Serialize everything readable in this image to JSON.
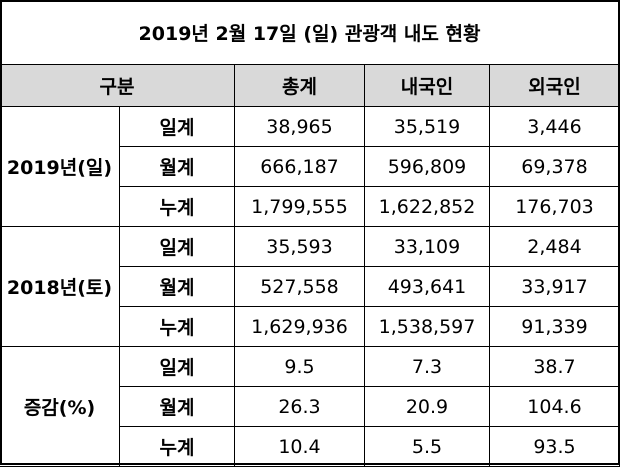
{
  "title": "2019년 2월 17일 (일) 관광객 내도 현황",
  "header": [
    "구분",
    "총계",
    "내국인",
    "외국인"
  ],
  "groups": [
    {
      "label": "2019년(일)",
      "rows": [
        {
          "label": "일계",
          "values": [
            "38,965",
            "35,519",
            "3,446"
          ]
        },
        {
          "label": "월계",
          "values": [
            "666,187",
            "596,809",
            "69,378"
          ]
        },
        {
          "label": "누계",
          "values": [
            "1,799,555",
            "1,622,852",
            "176,703"
          ]
        }
      ]
    },
    {
      "label": "2018년(토)",
      "rows": [
        {
          "label": "일계",
          "values": [
            "35,593",
            "33,109",
            "2,484"
          ]
        },
        {
          "label": "월계",
          "values": [
            "527,558",
            "493,641",
            "33,917"
          ]
        },
        {
          "label": "누계",
          "values": [
            "1,629,936",
            "1,538,597",
            "91,339"
          ]
        }
      ]
    },
    {
      "label": "증감(%)",
      "rows": [
        {
          "label": "일계",
          "values": [
            "9.5",
            "7.3",
            "38.7"
          ]
        },
        {
          "label": "월계",
          "values": [
            "26.3",
            "20.9",
            "104.6"
          ]
        },
        {
          "label": "누계",
          "values": [
            "10.4",
            "5.5",
            "93.5"
          ]
        }
      ]
    }
  ]
}
